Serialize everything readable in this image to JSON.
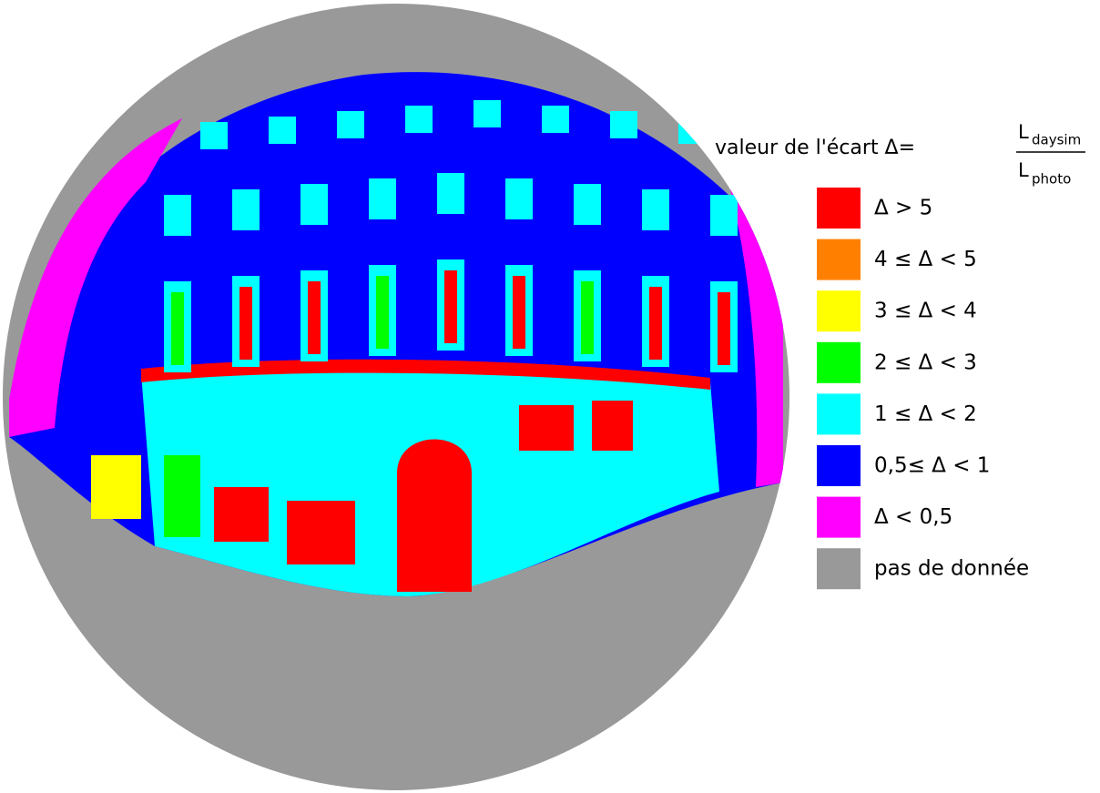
{
  "legend": {
    "title": "valeur de l'écart Δ=",
    "numerator": {
      "symbol": "L",
      "subscript": "daysim"
    },
    "denominator": {
      "symbol": "L",
      "subscript": "photo"
    },
    "items": [
      {
        "label": "Δ > 5",
        "color": "#ff0000"
      },
      {
        "label": "4 ≤ Δ < 5",
        "color": "#ff8000"
      },
      {
        "label": "3 ≤ Δ < 4",
        "color": "#ffff00"
      },
      {
        "label": "2 ≤ Δ < 3",
        "color": "#00ff00"
      },
      {
        "label": "1 ≤ Δ < 2",
        "color": "#00ffff"
      },
      {
        "label": "0,5≤ Δ < 1",
        "color": "#0000ff"
      },
      {
        "label": "Δ < 0,5",
        "color": "#ff00ff"
      },
      {
        "label": "pas de donnée",
        "color": "#999999"
      }
    ]
  }
}
